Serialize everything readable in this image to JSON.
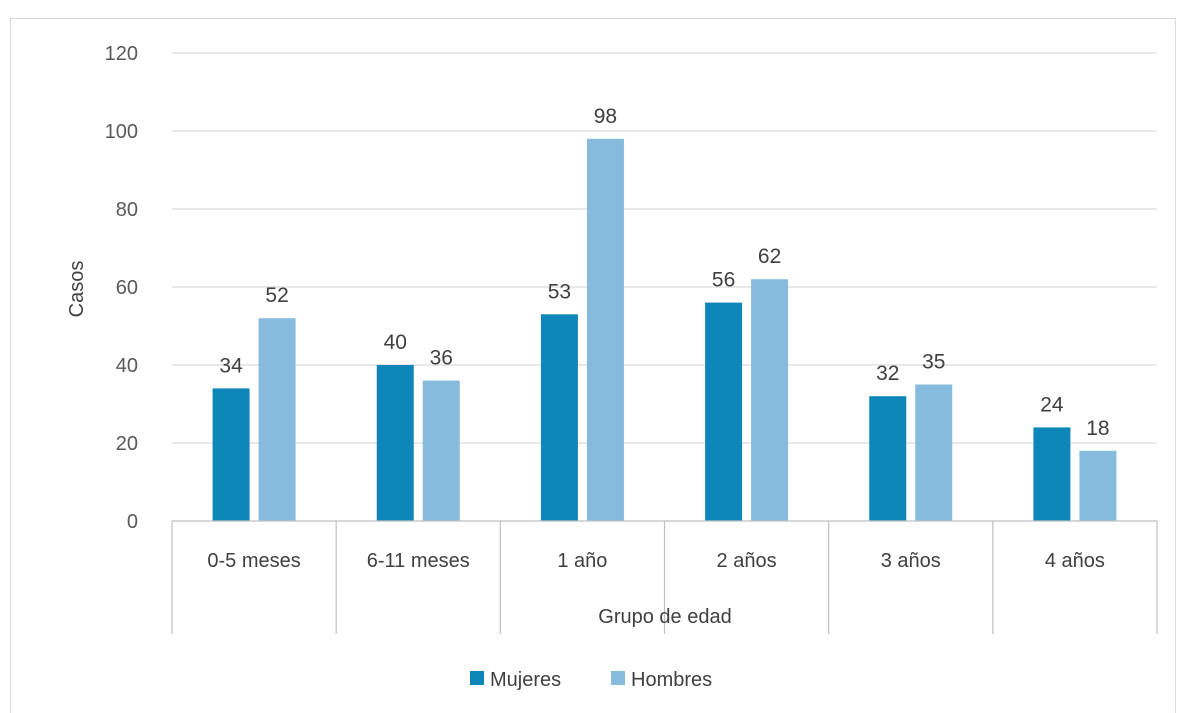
{
  "chart_data": {
    "type": "bar",
    "title": "",
    "xlabel": "Grupo de edad",
    "ylabel": "Casos",
    "ylim": [
      0,
      120
    ],
    "yticks": [
      0,
      20,
      40,
      60,
      80,
      100,
      120
    ],
    "categories": [
      "0-5 meses",
      "6-11 meses",
      "1 año",
      "2 años",
      "3 años",
      "4 años"
    ],
    "series": [
      {
        "name": "Mujeres",
        "color": "#0E86BA",
        "values": [
          34,
          40,
          53,
          56,
          32,
          24
        ]
      },
      {
        "name": "Hombres",
        "color": "#86BBDE",
        "values": [
          52,
          36,
          98,
          62,
          35,
          18
        ]
      }
    ],
    "grid": true,
    "legend": "bottom",
    "data_labels": true
  }
}
